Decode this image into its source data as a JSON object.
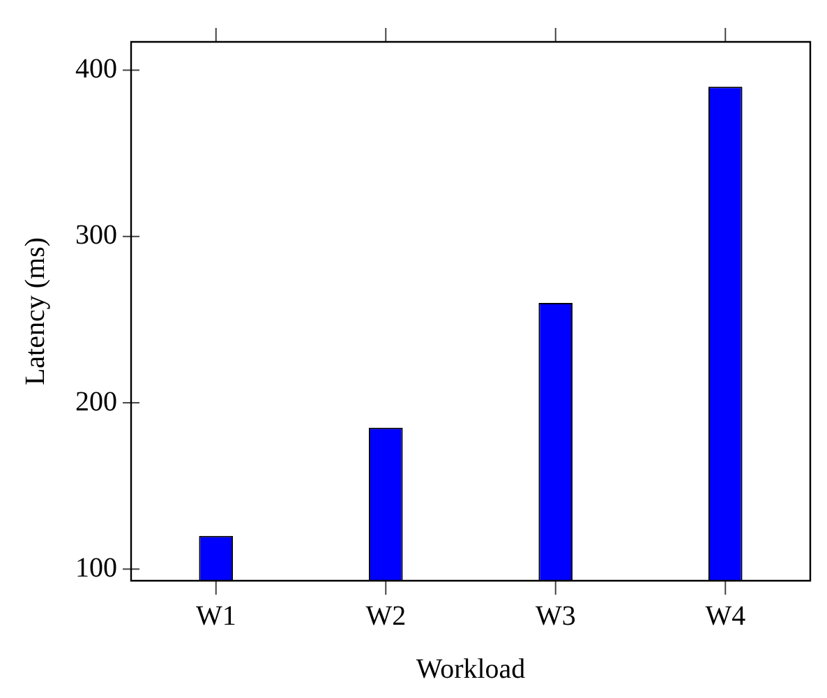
{
  "chart_data": {
    "type": "bar",
    "xlabel": "Workload",
    "ylabel": "Latency (ms)",
    "categories": [
      "W1",
      "W2",
      "W3",
      "W4"
    ],
    "values": [
      120,
      185,
      260,
      390
    ],
    "color": "#0000ff",
    "ylim": [
      93,
      417
    ],
    "yticks": [
      100,
      200,
      300,
      400
    ],
    "grid": false,
    "legend": false
  }
}
